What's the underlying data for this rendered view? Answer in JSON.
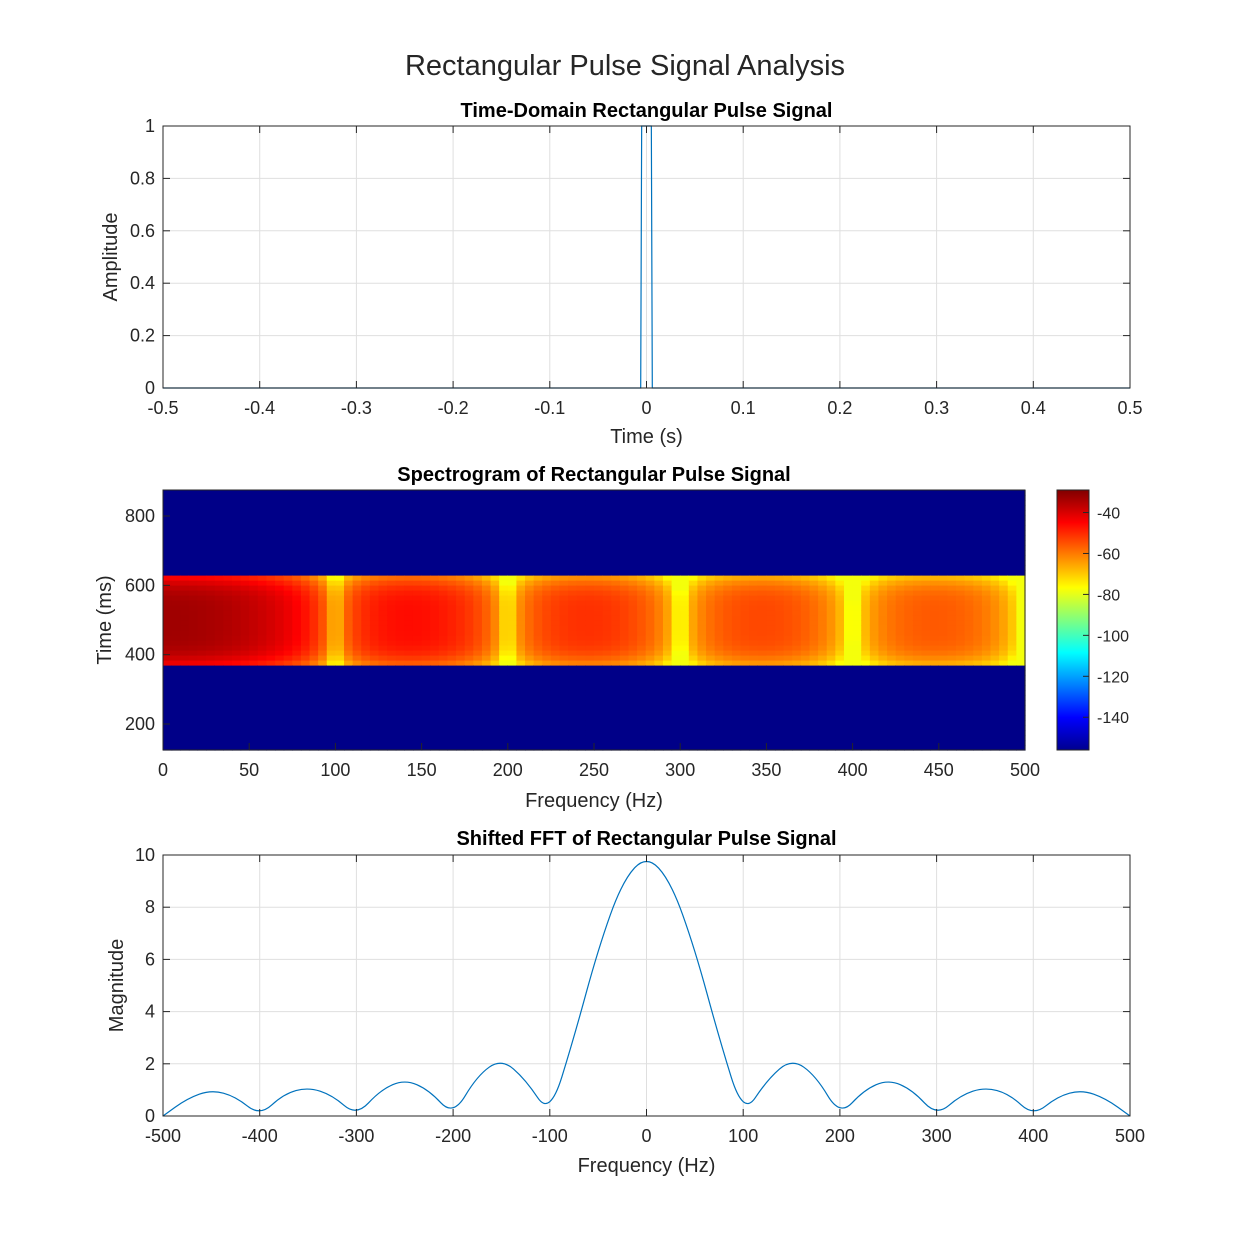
{
  "figure": {
    "title": "Rectangular Pulse Signal Analysis"
  },
  "chart_data": [
    {
      "type": "line",
      "title": "Time-Domain Rectangular Pulse Signal",
      "xlabel": "Time (s)",
      "ylabel": "Amplitude",
      "xlim": [
        -0.5,
        0.5
      ],
      "ylim": [
        0,
        1
      ],
      "grid": true,
      "xticks": [
        -0.5,
        -0.4,
        -0.3,
        -0.2,
        -0.1,
        0,
        0.1,
        0.2,
        0.3,
        0.4,
        0.5
      ],
      "xtick_labels": [
        "-0.5",
        "-0.4",
        "-0.3",
        "-0.2",
        "-0.1",
        "0",
        "0.1",
        "0.2",
        "0.3",
        "0.4",
        "0.5"
      ],
      "yticks": [
        0,
        0.2,
        0.4,
        0.6,
        0.8,
        1
      ],
      "ytick_labels": [
        "0",
        "0.2",
        "0.4",
        "0.6",
        "0.8",
        "1"
      ],
      "series": [
        {
          "x": [
            -0.5,
            -0.006,
            -0.005,
            0.005,
            0.006,
            0.5
          ],
          "y": [
            0,
            0,
            1,
            1,
            0,
            0
          ]
        }
      ]
    },
    {
      "type": "heatmap",
      "title": "Spectrogram of Rectangular Pulse Signal",
      "xlabel": "Frequency (Hz)",
      "ylabel": "Time (ms)",
      "xlim": [
        0,
        500
      ],
      "ylim": [
        125,
        875
      ],
      "xticks": [
        0,
        50,
        100,
        150,
        200,
        250,
        300,
        350,
        400,
        450,
        500
      ],
      "xtick_labels": [
        "0",
        "50",
        "100",
        "150",
        "200",
        "250",
        "300",
        "350",
        "400",
        "450",
        "500"
      ],
      "yticks": [
        200,
        400,
        600,
        800
      ],
      "ytick_labels": [
        "200",
        "400",
        "600",
        "800"
      ],
      "active_time_range": [
        365,
        630
      ],
      "background_db": -155,
      "colorbar": {
        "range": [
          -156,
          -29
        ],
        "ticks": [
          -40,
          -60,
          -80,
          -100,
          -120,
          -140
        ],
        "tick_labels": [
          "-40",
          "-60",
          "-80",
          "-100",
          "-120",
          "-140"
        ],
        "colormap": "jet"
      }
    },
    {
      "type": "line",
      "title": "Shifted FFT of Rectangular Pulse Signal",
      "xlabel": "Frequency (Hz)",
      "ylabel": "Magnitude",
      "xlim": [
        -500,
        500
      ],
      "ylim": [
        0,
        10
      ],
      "grid": true,
      "xticks": [
        -500,
        -400,
        -300,
        -200,
        -100,
        0,
        100,
        200,
        300,
        400,
        500
      ],
      "xtick_labels": [
        "-500",
        "-400",
        "-300",
        "-200",
        "-100",
        "0",
        "100",
        "200",
        "300",
        "400",
        "500"
      ],
      "yticks": [
        0,
        2,
        4,
        6,
        8,
        10
      ],
      "ytick_labels": [
        "0",
        "2",
        "4",
        "6",
        "8",
        "10"
      ],
      "series": [
        {
          "x": [
            -500,
            -475,
            -450,
            -425,
            -400,
            -375,
            -350,
            -325,
            -300,
            -275,
            -250,
            -225,
            -200,
            -175,
            -150,
            -125,
            -100,
            -75,
            -50,
            -25,
            0,
            25,
            50,
            75,
            100,
            125,
            150,
            175,
            200,
            225,
            250,
            275,
            300,
            325,
            350,
            375,
            400,
            425,
            450,
            475,
            500
          ],
          "y": [
            0,
            0.67,
            1.0,
            0.75,
            0,
            0.85,
            1.1,
            0.8,
            0,
            1.0,
            1.4,
            1.0,
            0,
            1.55,
            2.2,
            1.4,
            0,
            3.0,
            6.4,
            9.0,
            10,
            9.0,
            6.4,
            3.0,
            0,
            1.4,
            2.2,
            1.55,
            0,
            1.0,
            1.4,
            1.0,
            0,
            0.8,
            1.1,
            0.85,
            0,
            0.75,
            1.0,
            0.67,
            0
          ]
        }
      ]
    }
  ]
}
